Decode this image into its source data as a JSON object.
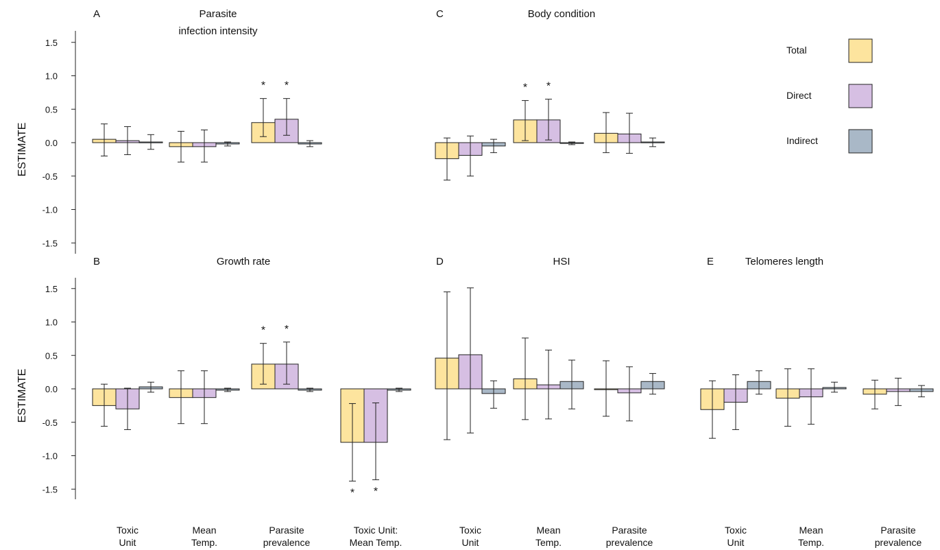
{
  "colors": {
    "Total": "#fde49e",
    "Direct": "#d6bfe3",
    "Indirect": "#a9b8c7"
  },
  "legend": [
    {
      "label": "Total",
      "color": "#fde49e"
    },
    {
      "label": "Direct",
      "color": "#d6bfe3"
    },
    {
      "label": "Indirect",
      "color": "#a9b8c7"
    }
  ],
  "ylabel": "ESTIMATE",
  "yticks": [
    "1.5",
    "1.0",
    "0.5",
    "0.0",
    "-0.5",
    "-1.0",
    "-1.5"
  ],
  "chart_data": [
    {
      "panel": "A",
      "type": "bar",
      "title": "Parasite\ninfection intensity",
      "ylabel": "ESTIMATE",
      "ylim": [
        -1.6,
        1.6
      ],
      "categories": [
        "Toxic Unit",
        "Mean Temp.",
        "Parasite prevalence"
      ],
      "series": [
        {
          "name": "Total",
          "values": [
            0.05,
            -0.06,
            0.3
          ],
          "ci_low": [
            -0.2,
            -0.29,
            0.09
          ],
          "ci_high": [
            0.28,
            0.17,
            0.66
          ],
          "significant": [
            false,
            false,
            true
          ]
        },
        {
          "name": "Direct",
          "values": [
            0.03,
            -0.06,
            0.35
          ],
          "ci_low": [
            -0.18,
            -0.29,
            0.11
          ],
          "ci_high": [
            0.24,
            0.19,
            0.66
          ],
          "significant": [
            false,
            false,
            true
          ]
        },
        {
          "name": "Indirect",
          "values": [
            0.01,
            -0.02,
            -0.02
          ],
          "ci_low": [
            -0.1,
            -0.05,
            -0.06
          ],
          "ci_high": [
            0.12,
            0.01,
            0.03
          ],
          "significant": [
            false,
            false,
            false
          ]
        }
      ]
    },
    {
      "panel": "B",
      "type": "bar",
      "title": "Growth rate",
      "ylabel": "ESTIMATE",
      "ylim": [
        -1.6,
        1.6
      ],
      "categories": [
        "Toxic Unit",
        "Mean Temp.",
        "Parasite prevalence",
        "Toxic Unit: Mean Temp."
      ],
      "series": [
        {
          "name": "Total",
          "values": [
            -0.25,
            -0.13,
            0.37,
            -0.8
          ],
          "ci_low": [
            -0.56,
            -0.52,
            0.07,
            -1.38
          ],
          "ci_high": [
            0.07,
            0.27,
            0.68,
            -0.22
          ],
          "significant": [
            false,
            false,
            true,
            true
          ]
        },
        {
          "name": "Direct",
          "values": [
            -0.3,
            -0.13,
            0.37,
            -0.8
          ],
          "ci_low": [
            -0.61,
            -0.52,
            0.07,
            -1.36
          ],
          "ci_high": [
            0.01,
            0.27,
            0.7,
            -0.21
          ],
          "significant": [
            false,
            false,
            true,
            true
          ]
        },
        {
          "name": "Indirect",
          "values": [
            0.03,
            -0.02,
            -0.02,
            -0.02
          ],
          "ci_low": [
            -0.05,
            -0.04,
            -0.04,
            -0.04
          ],
          "ci_high": [
            0.1,
            0.01,
            0.01,
            0.01
          ],
          "significant": [
            false,
            false,
            false,
            false
          ]
        }
      ]
    },
    {
      "panel": "C",
      "type": "bar",
      "title": "Body condition",
      "ylabel": "ESTIMATE",
      "ylim": [
        -1.6,
        1.6
      ],
      "categories": [
        "Toxic Unit",
        "Mean Temp.",
        "Parasite prevalence"
      ],
      "series": [
        {
          "name": "Total",
          "values": [
            -0.24,
            0.34,
            0.14
          ],
          "ci_low": [
            -0.56,
            0.03,
            -0.15
          ],
          "ci_high": [
            0.07,
            0.63,
            0.45
          ],
          "significant": [
            false,
            true,
            false
          ]
        },
        {
          "name": "Direct",
          "values": [
            -0.19,
            0.34,
            0.13
          ],
          "ci_low": [
            -0.5,
            0.04,
            -0.16
          ],
          "ci_high": [
            0.1,
            0.65,
            0.44
          ],
          "significant": [
            false,
            true,
            false
          ]
        },
        {
          "name": "Indirect",
          "values": [
            -0.05,
            -0.01,
            0.01
          ],
          "ci_low": [
            -0.15,
            -0.03,
            -0.06
          ],
          "ci_high": [
            0.05,
            0.01,
            0.07
          ],
          "significant": [
            false,
            false,
            false
          ]
        }
      ]
    },
    {
      "panel": "D",
      "type": "bar",
      "title": "HSI",
      "ylabel": "ESTIMATE",
      "ylim": [
        -1.6,
        1.6
      ],
      "categories": [
        "Toxic Unit",
        "Mean Temp.",
        "Parasite prevalence"
      ],
      "series": [
        {
          "name": "Total",
          "values": [
            0.46,
            0.15,
            0.0
          ],
          "ci_low": [
            -0.76,
            -0.46,
            -0.41
          ],
          "ci_high": [
            1.45,
            0.76,
            0.42
          ],
          "significant": [
            false,
            false,
            false
          ]
        },
        {
          "name": "Direct",
          "values": [
            0.51,
            0.06,
            -0.06
          ],
          "ci_low": [
            -0.66,
            -0.45,
            -0.48
          ],
          "ci_high": [
            1.51,
            0.58,
            0.33
          ],
          "significant": [
            false,
            false,
            false
          ]
        },
        {
          "name": "Indirect",
          "values": [
            -0.07,
            0.11,
            0.11
          ],
          "ci_low": [
            -0.29,
            -0.3,
            -0.08
          ],
          "ci_high": [
            0.12,
            0.43,
            0.23
          ],
          "significant": [
            false,
            false,
            false
          ]
        }
      ]
    },
    {
      "panel": "E",
      "type": "bar",
      "title": "Telomeres length",
      "ylabel": "ESTIMATE",
      "ylim": [
        -1.6,
        1.6
      ],
      "categories": [
        "Toxic Unit",
        "Mean Temp.",
        "Parasite prevalence"
      ],
      "series": [
        {
          "name": "Total",
          "values": [
            -0.31,
            -0.14,
            -0.08
          ],
          "ci_low": [
            -0.74,
            -0.56,
            -0.3
          ],
          "ci_high": [
            0.12,
            0.3,
            0.13
          ],
          "significant": [
            false,
            false,
            false
          ]
        },
        {
          "name": "Direct",
          "values": [
            -0.2,
            -0.12,
            -0.04
          ],
          "ci_low": [
            -0.61,
            -0.53,
            -0.25
          ],
          "ci_high": [
            0.21,
            0.3,
            0.16
          ],
          "significant": [
            false,
            false,
            false
          ]
        },
        {
          "name": "Indirect",
          "values": [
            0.11,
            0.02,
            -0.04
          ],
          "ci_low": [
            -0.08,
            -0.05,
            -0.12
          ],
          "ci_high": [
            0.27,
            0.1,
            0.05
          ],
          "significant": [
            false,
            false,
            false
          ]
        }
      ]
    }
  ]
}
